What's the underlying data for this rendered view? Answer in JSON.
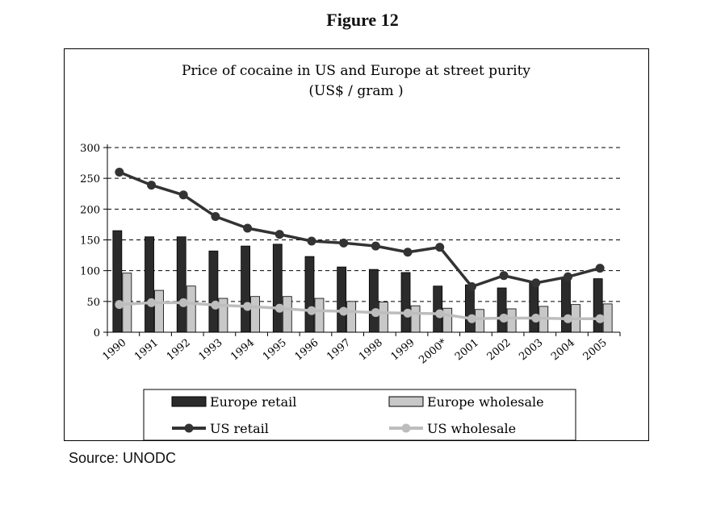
{
  "figure_label": "Figure 12",
  "source": "Source: UNODC",
  "colors": {
    "europe_retail": "#2b2b2b",
    "europe_wholesale": "#c8c8c8",
    "us_retail": "#333333",
    "us_wholesale": "#bdbdbd",
    "grid": "#000000"
  },
  "chart_data": {
    "type": "bar",
    "title": "Price of cocaine in US and Europe at street purity",
    "subtitle": "(US$ / gram )",
    "categories": [
      "1990",
      "1991",
      "1992",
      "1993",
      "1994",
      "1995",
      "1996",
      "1997",
      "1998",
      "1999",
      "2000*",
      "2001",
      "2002",
      "2003",
      "2004",
      "2005"
    ],
    "ylim": [
      0,
      300
    ],
    "yticks": [
      0,
      50,
      100,
      150,
      200,
      250,
      300
    ],
    "grid": "horizontal-dashed",
    "legend_position": "bottom",
    "series": [
      {
        "name": "Europe retail",
        "kind": "bar",
        "values": [
          165,
          155,
          155,
          132,
          140,
          143,
          123,
          106,
          102,
          97,
          75,
          77,
          72,
          80,
          88,
          87
        ]
      },
      {
        "name": "Europe wholesale",
        "kind": "bar",
        "values": [
          96,
          68,
          75,
          55,
          58,
          58,
          55,
          50,
          49,
          43,
          39,
          37,
          38,
          42,
          45,
          46
        ]
      },
      {
        "name": "US retail",
        "kind": "line",
        "values": [
          260,
          239,
          223,
          188,
          169,
          159,
          148,
          145,
          140,
          130,
          138,
          74,
          92,
          80,
          90,
          104
        ]
      },
      {
        "name": "US wholesale",
        "kind": "line",
        "values": [
          45,
          48,
          48,
          44,
          42,
          39,
          35,
          34,
          32,
          31,
          30,
          22,
          23,
          23,
          22,
          22
        ]
      }
    ]
  }
}
